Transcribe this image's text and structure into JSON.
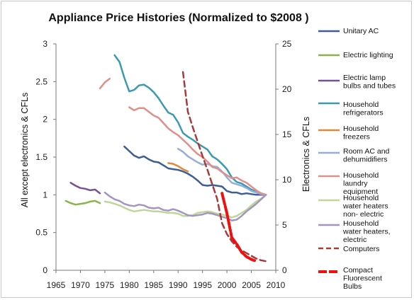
{
  "chart_data": {
    "type": "line",
    "title": "Appliance Price Histories (Normalized to $2008 )",
    "ylabel": "All except electronics & CFLs",
    "y2label": "Electronics & CFLs",
    "xlim": [
      1965,
      2010
    ],
    "ylim": [
      0,
      3
    ],
    "y2lim": [
      0,
      25
    ],
    "x_ticks": [
      "1965",
      "1970",
      "1975",
      "1980",
      "1985",
      "1990",
      "1995",
      "2000",
      "2005",
      "2010"
    ],
    "y_ticks": [
      "0",
      "0.5",
      "1",
      "1.5",
      "2",
      "2.5",
      "3"
    ],
    "y2_ticks": [
      "0",
      "5",
      "10",
      "15",
      "20",
      "25"
    ],
    "series": [
      {
        "name": "Unitary AC",
        "axis": "left",
        "color": "#3c5d97",
        "style": "solid",
        "x": [
          1979,
          1980,
          1981,
          1982,
          1983,
          1984,
          1985,
          1986,
          1987,
          1988,
          1989,
          1990,
          1991,
          1992,
          1993,
          1994,
          1995,
          1996,
          1997,
          1998,
          1999,
          2000,
          2001,
          2002,
          2003,
          2004,
          2005,
          2006,
          2007,
          2008
        ],
        "y": [
          1.64,
          1.58,
          1.52,
          1.49,
          1.51,
          1.47,
          1.44,
          1.43,
          1.39,
          1.35,
          1.34,
          1.33,
          1.31,
          1.28,
          1.24,
          1.19,
          1.13,
          1.12,
          1.13,
          1.12,
          1.11,
          1.05,
          1.03,
          1.03,
          1.01,
          1.02,
          1.01,
          1.0,
          1.0,
          1.0
        ]
      },
      {
        "name": "Electric lighting",
        "axis": "left",
        "color": "#8ab44a",
        "style": "solid",
        "x": [
          1967,
          1968,
          1969,
          1970,
          1971,
          1972,
          1973,
          1974
        ],
        "y": [
          0.92,
          0.89,
          0.87,
          0.88,
          0.89,
          0.91,
          0.92,
          0.89
        ]
      },
      {
        "name": "Electric lamp bulbs and tubes",
        "axis": "left",
        "color": "#75519a",
        "style": "solid",
        "x": [
          1968,
          1969,
          1970,
          1971,
          1972,
          1973,
          1974
        ],
        "y": [
          1.16,
          1.12,
          1.09,
          1.08,
          1.06,
          1.07,
          1.02
        ]
      },
      {
        "name": "Household refrigerators",
        "axis": "left",
        "color": "#3a9bb0",
        "style": "solid",
        "x": [
          1977,
          1978,
          1979,
          1980,
          1981,
          1982,
          1983,
          1984,
          1985,
          1986,
          1987,
          1988,
          1989,
          1990,
          1991,
          1992,
          1993,
          1994,
          1995,
          1996,
          1997,
          1998,
          1999,
          2000,
          2001,
          2002,
          2003,
          2004,
          2005,
          2006,
          2007,
          2008
        ],
        "y": [
          2.85,
          2.76,
          2.55,
          2.37,
          2.39,
          2.45,
          2.46,
          2.42,
          2.36,
          2.28,
          2.18,
          2.09,
          2.06,
          1.96,
          1.82,
          1.77,
          1.73,
          1.68,
          1.64,
          1.6,
          1.51,
          1.47,
          1.41,
          1.34,
          1.23,
          1.17,
          1.15,
          1.11,
          1.07,
          1.04,
          1.02,
          1.0
        ]
      },
      {
        "name": "Household freezers",
        "axis": "left",
        "color": "#e08a39",
        "style": "solid",
        "x": [
          1988,
          1989,
          1990,
          1991,
          1992
        ],
        "y": [
          1.42,
          1.41,
          1.38,
          1.34,
          1.31
        ]
      },
      {
        "name": "Room AC and dehumidifiers",
        "axis": "left",
        "color": "#93aedb",
        "style": "solid",
        "x": [
          1990,
          1991,
          1992,
          1993,
          1994,
          1995,
          1996,
          1997,
          1998,
          1999,
          2000,
          2001,
          2002,
          2003,
          2004,
          2005,
          2006,
          2007,
          2008
        ],
        "y": [
          1.61,
          1.57,
          1.51,
          1.47,
          1.43,
          1.4,
          1.41,
          1.38,
          1.37,
          1.31,
          1.23,
          1.16,
          1.14,
          1.12,
          1.09,
          1.05,
          1.03,
          1.01,
          1.0
        ]
      },
      {
        "name": "Household laundry equipment",
        "axis": "left",
        "color": "#e08f8a",
        "style": "solid",
        "x": [
          1980,
          1981,
          1982,
          1983,
          1984,
          1985,
          1986,
          1987,
          1988,
          1989,
          1990,
          1991,
          1992,
          1993,
          1994,
          1995,
          1996,
          1997,
          1998,
          1999,
          2000,
          2001,
          2002,
          2003,
          2004,
          2005,
          2006,
          2007,
          2008
        ],
        "y": [
          2.16,
          2.12,
          2.15,
          2.15,
          2.1,
          2.05,
          2.02,
          1.95,
          1.88,
          1.83,
          1.79,
          1.73,
          1.67,
          1.6,
          1.54,
          1.5,
          1.44,
          1.37,
          1.35,
          1.3,
          1.26,
          1.22,
          1.23,
          1.19,
          1.16,
          1.11,
          1.06,
          1.02,
          1.0
        ],
        "x_early": [
          1974,
          1975,
          1976
        ],
        "y_early": [
          2.41,
          2.49,
          2.54
        ]
      },
      {
        "name": "Household water heaters non- electric",
        "axis": "left",
        "color": "#bfd69a",
        "style": "solid",
        "x": [
          1975,
          1976,
          1977,
          1978,
          1979,
          1980,
          1981,
          1982,
          1983,
          1984,
          1985,
          1986,
          1987,
          1988,
          1989,
          1990,
          1991,
          1992,
          1993,
          1994,
          1995,
          1996,
          1997,
          1998,
          1999,
          2000,
          2001,
          2002,
          2003,
          2004,
          2005,
          2006,
          2007,
          2008
        ],
        "y": [
          0.91,
          0.9,
          0.88,
          0.86,
          0.83,
          0.8,
          0.78,
          0.79,
          0.8,
          0.79,
          0.78,
          0.78,
          0.77,
          0.76,
          0.76,
          0.75,
          0.72,
          0.72,
          0.73,
          0.76,
          0.77,
          0.78,
          0.77,
          0.75,
          0.74,
          0.72,
          0.7,
          0.72,
          0.76,
          0.8,
          0.86,
          0.91,
          0.95,
          1.0
        ]
      },
      {
        "name": "Household water heaters, electric",
        "axis": "left",
        "color": "#a395c2",
        "style": "solid",
        "x": [
          1975,
          1976,
          1977,
          1978,
          1979,
          1980,
          1981,
          1982,
          1983,
          1984,
          1985,
          1986,
          1987,
          1988,
          1989,
          1990,
          1991,
          1992,
          1993,
          1994,
          1995,
          1996,
          1997,
          1998,
          1999,
          2000,
          2001,
          2002,
          2003,
          2004,
          2005,
          2006,
          2007,
          2008
        ],
        "y": [
          1.03,
          0.98,
          0.94,
          0.92,
          0.88,
          0.86,
          0.85,
          0.87,
          0.86,
          0.83,
          0.82,
          0.83,
          0.8,
          0.79,
          0.81,
          0.79,
          0.76,
          0.73,
          0.72,
          0.73,
          0.74,
          0.76,
          0.75,
          0.73,
          0.71,
          0.69,
          0.66,
          0.67,
          0.72,
          0.78,
          0.83,
          0.88,
          0.94,
          1.0
        ]
      },
      {
        "name": "Computers",
        "axis": "right",
        "color": "#a83b3a",
        "style": "dashed",
        "x": [
          1991,
          1992,
          1993,
          1994,
          1995,
          1996,
          1997,
          1998,
          1999,
          2000,
          2001,
          2002,
          2003,
          2004,
          2005,
          2006,
          2007,
          2008
        ],
        "y": [
          21.9,
          17.5,
          15.8,
          14.2,
          12.6,
          11.1,
          9.5,
          7.9,
          5.2,
          4.0,
          3.2,
          2.6,
          2.2,
          1.9,
          1.6,
          1.3,
          1.1,
          1.0
        ]
      },
      {
        "name": "Compact Fluorescent Bulbs",
        "axis": "right",
        "color": "#ee1111",
        "style": "dashed-bold",
        "x": [
          1999,
          2000,
          2001,
          2002,
          2003,
          2004,
          2005,
          2006
        ],
        "y": [
          8.5,
          6.3,
          3.6,
          2.9,
          2.0,
          1.5,
          1.2,
          1.0
        ]
      }
    ]
  }
}
